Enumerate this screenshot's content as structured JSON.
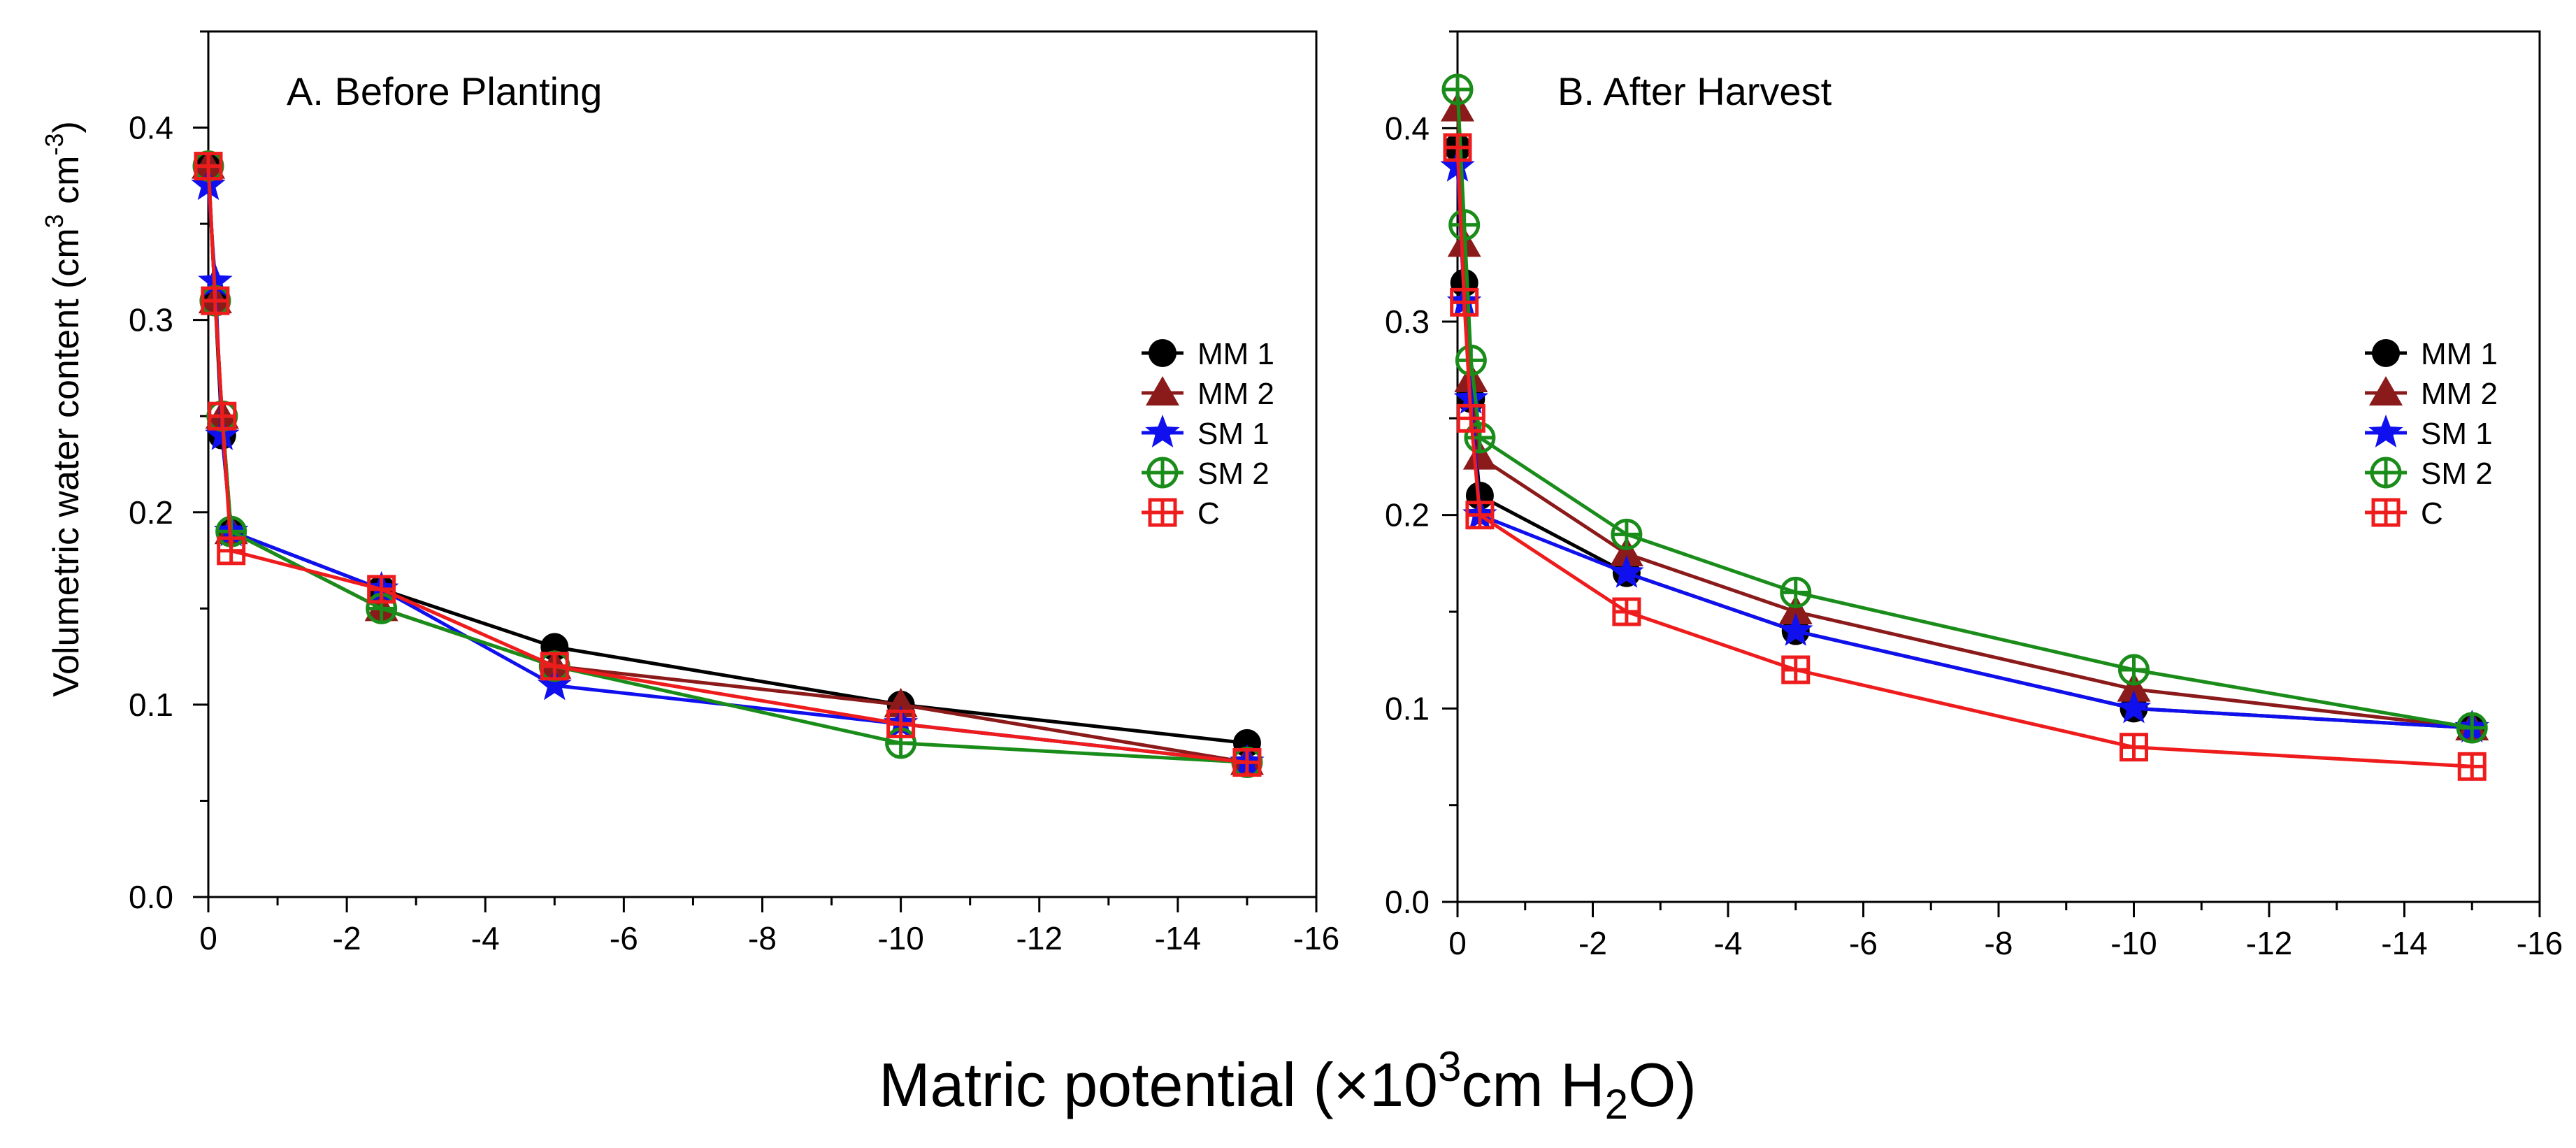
{
  "figure": {
    "x_title": {
      "text": "Matric potential (×10",
      "sup": "3",
      "text2": "cm H",
      "sub": "2",
      "text3": "O)"
    },
    "y_title": {
      "text": "Volumetric water content (cm",
      "sup1": "3",
      "text2": " cm",
      "sup2": "-3",
      "text3": ")"
    }
  },
  "chart_data": [
    {
      "type": "line",
      "title": "A. Before Planting",
      "xlabel": "Matric potential (×10^3 cm H2O)",
      "ylabel": "Volumetric water content (cm3 cm-3)",
      "xlim": [
        0,
        -16
      ],
      "ylim": [
        0,
        0.45
      ],
      "xticks": [
        "0",
        "-2",
        "-4",
        "-6",
        "-8",
        "-10",
        "-12",
        "-14",
        "-16"
      ],
      "yticks": [
        "0.0",
        "0.1",
        "0.2",
        "0.3",
        "0.4"
      ],
      "legend_position": "right",
      "series": [
        {
          "name": "MM 1",
          "color": "#000000",
          "marker": "circle",
          "x": [
            0,
            -0.1,
            -0.2,
            -0.33,
            -2.5,
            -5,
            -10,
            -15
          ],
          "y": [
            0.38,
            0.31,
            0.24,
            0.19,
            0.16,
            0.13,
            0.1,
            0.08
          ]
        },
        {
          "name": "MM 2",
          "color": "#8b1a1a",
          "marker": "triangle",
          "x": [
            0,
            -0.1,
            -0.2,
            -0.33,
            -2.5,
            -5,
            -10,
            -15
          ],
          "y": [
            0.38,
            0.31,
            0.25,
            0.19,
            0.15,
            0.12,
            0.1,
            0.07
          ]
        },
        {
          "name": "SM 1",
          "color": "#1010ee",
          "marker": "star",
          "x": [
            0,
            -0.1,
            -0.2,
            -0.33,
            -2.5,
            -5,
            -10,
            -15
          ],
          "y": [
            0.37,
            0.32,
            0.24,
            0.19,
            0.16,
            0.11,
            0.09,
            0.07
          ]
        },
        {
          "name": "SM 2",
          "color": "#1a8c1a",
          "marker": "circle-plus",
          "x": [
            0,
            -0.1,
            -0.2,
            -0.33,
            -2.5,
            -5,
            -10,
            -15
          ],
          "y": [
            0.38,
            0.31,
            0.25,
            0.19,
            0.15,
            0.12,
            0.08,
            0.07
          ]
        },
        {
          "name": "C",
          "color": "#ee1c1c",
          "marker": "square-plus",
          "x": [
            0,
            -0.1,
            -0.2,
            -0.33,
            -2.5,
            -5,
            -10,
            -15
          ],
          "y": [
            0.38,
            0.31,
            0.25,
            0.18,
            0.16,
            0.12,
            0.09,
            0.07
          ]
        }
      ]
    },
    {
      "type": "line",
      "title": "B. After Harvest",
      "xlabel": "Matric potential (×10^3 cm H2O)",
      "ylabel": "",
      "xlim": [
        0,
        -16
      ],
      "ylim": [
        0,
        0.45
      ],
      "xticks": [
        "0",
        "-2",
        "-4",
        "-6",
        "-8",
        "-10",
        "-12",
        "-14",
        "-16"
      ],
      "yticks": [
        "0.0",
        "0.1",
        "0.2",
        "0.3",
        "0.4"
      ],
      "legend_position": "right",
      "series": [
        {
          "name": "MM 1",
          "color": "#000000",
          "marker": "circle",
          "x": [
            0,
            -0.1,
            -0.2,
            -0.33,
            -2.5,
            -5,
            -10,
            -15
          ],
          "y": [
            0.39,
            0.32,
            0.26,
            0.21,
            0.17,
            0.14,
            0.1,
            0.09
          ]
        },
        {
          "name": "MM 2",
          "color": "#8b1a1a",
          "marker": "triangle",
          "x": [
            0,
            -0.1,
            -0.2,
            -0.33,
            -2.5,
            -5,
            -10,
            -15
          ],
          "y": [
            0.41,
            0.34,
            0.27,
            0.23,
            0.18,
            0.15,
            0.11,
            0.09
          ]
        },
        {
          "name": "SM 1",
          "color": "#1010ee",
          "marker": "star",
          "x": [
            0,
            -0.1,
            -0.2,
            -0.33,
            -2.5,
            -5,
            -10,
            -15
          ],
          "y": [
            0.38,
            0.31,
            0.26,
            0.2,
            0.17,
            0.14,
            0.1,
            0.09
          ]
        },
        {
          "name": "SM 2",
          "color": "#1a8c1a",
          "marker": "circle-plus",
          "x": [
            0,
            -0.1,
            -0.2,
            -0.33,
            -2.5,
            -5,
            -10,
            -15
          ],
          "y": [
            0.42,
            0.35,
            0.28,
            0.24,
            0.19,
            0.16,
            0.12,
            0.09
          ]
        },
        {
          "name": "C",
          "color": "#ee1c1c",
          "marker": "square-plus",
          "x": [
            0,
            -0.1,
            -0.2,
            -0.33,
            -2.5,
            -5,
            -10,
            -15
          ],
          "y": [
            0.39,
            0.31,
            0.25,
            0.2,
            0.15,
            0.12,
            0.08,
            0.07
          ]
        }
      ]
    }
  ]
}
